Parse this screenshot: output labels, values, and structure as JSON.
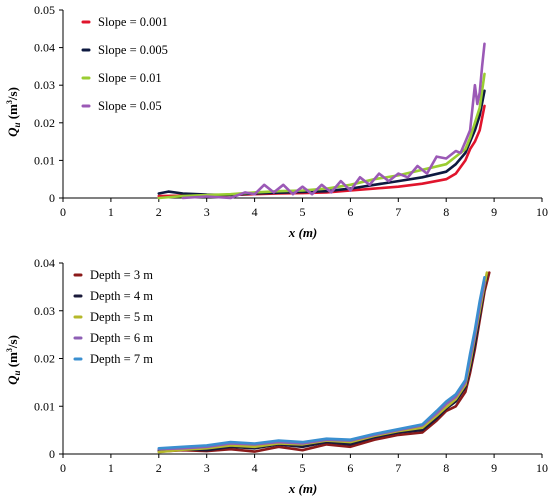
{
  "chart_data": [
    {
      "type": "line",
      "xlabel": "x (m)",
      "ylabel": "Qu (m3/s)",
      "xlim": [
        0,
        10
      ],
      "ylim": [
        0,
        0.05
      ],
      "x_ticks": [
        "0",
        "1",
        "2",
        "3",
        "4",
        "5",
        "6",
        "7",
        "8",
        "9",
        "10"
      ],
      "y_ticks": [
        "0",
        "0.01",
        "0.02",
        "0.03",
        "0.04",
        "0.05"
      ],
      "legend_position": "top-left",
      "grid": false,
      "series": [
        {
          "name": "Slope = 0.001",
          "color": "#e0142c",
          "x": [
            2.0,
            2.5,
            3.0,
            3.5,
            4.0,
            4.5,
            5.0,
            5.5,
            6.0,
            6.5,
            7.0,
            7.5,
            8.0,
            8.2,
            8.4,
            8.5,
            8.6,
            8.7,
            8.8
          ],
          "y": [
            0.0005,
            0.0006,
            0.0007,
            0.0008,
            0.001,
            0.0012,
            0.0013,
            0.0015,
            0.002,
            0.0025,
            0.003,
            0.0038,
            0.005,
            0.0065,
            0.01,
            0.013,
            0.015,
            0.018,
            0.0245
          ]
        },
        {
          "name": "Slope = 0.005",
          "color": "#0d1940",
          "x": [
            2.0,
            2.2,
            2.5,
            3.0,
            3.5,
            4.0,
            4.5,
            5.0,
            5.5,
            6.0,
            6.5,
            7.0,
            7.5,
            8.0,
            8.2,
            8.4,
            8.5,
            8.6,
            8.7,
            8.8
          ],
          "y": [
            0.0012,
            0.0017,
            0.0012,
            0.0009,
            0.0008,
            0.0012,
            0.0014,
            0.0016,
            0.0018,
            0.0025,
            0.0035,
            0.0045,
            0.0055,
            0.007,
            0.009,
            0.012,
            0.015,
            0.018,
            0.022,
            0.0285
          ]
        },
        {
          "name": "Slope = 0.01",
          "color": "#9acd32",
          "x": [
            2.0,
            2.5,
            3.0,
            3.5,
            4.0,
            4.5,
            5.0,
            5.5,
            6.0,
            6.5,
            7.0,
            7.5,
            8.0,
            8.2,
            8.4,
            8.5,
            8.6,
            8.7,
            8.8
          ],
          "y": [
            0.0,
            0.0005,
            0.0008,
            0.001,
            0.0015,
            0.0018,
            0.002,
            0.0025,
            0.0035,
            0.005,
            0.006,
            0.0075,
            0.009,
            0.011,
            0.013,
            0.016,
            0.02,
            0.024,
            0.033
          ]
        },
        {
          "name": "Slope = 0.05",
          "color": "#9b59b6",
          "x": [
            2.5,
            3.0,
            3.5,
            3.8,
            4.0,
            4.2,
            4.4,
            4.6,
            4.8,
            5.0,
            5.2,
            5.4,
            5.6,
            5.8,
            6.0,
            6.2,
            6.4,
            6.6,
            6.8,
            7.0,
            7.2,
            7.4,
            7.6,
            7.8,
            8.0,
            8.2,
            8.3,
            8.4,
            8.5,
            8.6,
            8.65,
            8.7,
            8.75,
            8.8
          ],
          "y": [
            0.0,
            0.0004,
            0.0,
            0.0015,
            0.001,
            0.0035,
            0.0015,
            0.0035,
            0.001,
            0.003,
            0.001,
            0.0035,
            0.0015,
            0.0045,
            0.002,
            0.0055,
            0.0035,
            0.0065,
            0.0045,
            0.0065,
            0.0055,
            0.0085,
            0.0065,
            0.011,
            0.0105,
            0.0125,
            0.012,
            0.015,
            0.018,
            0.03,
            0.025,
            0.028,
            0.035,
            0.041
          ]
        }
      ]
    },
    {
      "type": "line",
      "xlabel": "x (m)",
      "ylabel": "Qu (m3/s)",
      "xlim": [
        0,
        10
      ],
      "ylim": [
        0,
        0.04
      ],
      "x_ticks": [
        "0",
        "1",
        "2",
        "3",
        "4",
        "5",
        "6",
        "7",
        "8",
        "9",
        "10"
      ],
      "y_ticks": [
        "0",
        "0.01",
        "0.02",
        "0.03",
        "0.04"
      ],
      "legend_position": "top-left",
      "grid": false,
      "series": [
        {
          "name": "Depth = 3 m",
          "color": "#8b1a1a",
          "x": [
            2.0,
            2.5,
            3.0,
            3.5,
            4.0,
            4.5,
            5.0,
            5.5,
            6.0,
            6.5,
            7.0,
            7.5,
            7.8,
            8.0,
            8.2,
            8.4,
            8.5,
            8.6,
            8.7,
            8.8,
            8.9
          ],
          "y": [
            0.0005,
            0.0008,
            0.0006,
            0.001,
            0.0005,
            0.0015,
            0.0008,
            0.002,
            0.0015,
            0.003,
            0.004,
            0.0045,
            0.007,
            0.009,
            0.01,
            0.013,
            0.017,
            0.022,
            0.028,
            0.034,
            0.038
          ]
        },
        {
          "name": "Depth = 4 m",
          "color": "#1a1a3a",
          "x": [
            2.0,
            2.5,
            3.0,
            3.5,
            4.0,
            4.5,
            5.0,
            5.5,
            6.0,
            6.5,
            7.0,
            7.5,
            7.8,
            8.0,
            8.2,
            8.4,
            8.5,
            8.6,
            8.7,
            8.8,
            8.85
          ],
          "y": [
            0.0008,
            0.001,
            0.0008,
            0.0015,
            0.0012,
            0.002,
            0.0015,
            0.0025,
            0.002,
            0.0035,
            0.0045,
            0.005,
            0.0075,
            0.0095,
            0.011,
            0.014,
            0.018,
            0.023,
            0.029,
            0.035,
            0.0375
          ]
        },
        {
          "name": "Depth = 5 m",
          "color": "#b5b82a",
          "x": [
            2.0,
            2.5,
            3.0,
            3.5,
            4.0,
            4.5,
            5.0,
            5.5,
            6.0,
            6.5,
            7.0,
            7.5,
            7.8,
            8.0,
            8.2,
            8.4,
            8.5,
            8.6,
            8.7,
            8.8,
            8.85
          ],
          "y": [
            0.0004,
            0.0009,
            0.0012,
            0.0018,
            0.0015,
            0.0022,
            0.002,
            0.0028,
            0.0025,
            0.0038,
            0.0048,
            0.0055,
            0.008,
            0.0098,
            0.0115,
            0.0145,
            0.019,
            0.0245,
            0.03,
            0.0355,
            0.038
          ]
        },
        {
          "name": "Depth = 6 m",
          "color": "#8e5fb5",
          "x": [
            2.0,
            2.5,
            3.0,
            3.5,
            4.0,
            4.5,
            5.0,
            5.5,
            6.0,
            6.5,
            7.0,
            7.5,
            7.8,
            8.0,
            8.2,
            8.4,
            8.5,
            8.6,
            8.7,
            8.8
          ],
          "y": [
            0.001,
            0.0012,
            0.0015,
            0.0022,
            0.002,
            0.0025,
            0.0022,
            0.003,
            0.0028,
            0.004,
            0.005,
            0.006,
            0.0085,
            0.0105,
            0.012,
            0.015,
            0.02,
            0.025,
            0.031,
            0.036
          ]
        },
        {
          "name": "Depth = 7 m",
          "color": "#3a8fd0",
          "x": [
            2.0,
            2.5,
            3.0,
            3.5,
            4.0,
            4.5,
            5.0,
            5.5,
            6.0,
            6.5,
            7.0,
            7.5,
            7.8,
            8.0,
            8.2,
            8.4,
            8.5,
            8.6,
            8.7,
            8.8
          ],
          "y": [
            0.0012,
            0.0015,
            0.0018,
            0.0025,
            0.0022,
            0.0028,
            0.0025,
            0.0032,
            0.003,
            0.0042,
            0.0052,
            0.0062,
            0.009,
            0.011,
            0.0125,
            0.0155,
            0.021,
            0.026,
            0.032,
            0.037
          ]
        }
      ]
    }
  ]
}
